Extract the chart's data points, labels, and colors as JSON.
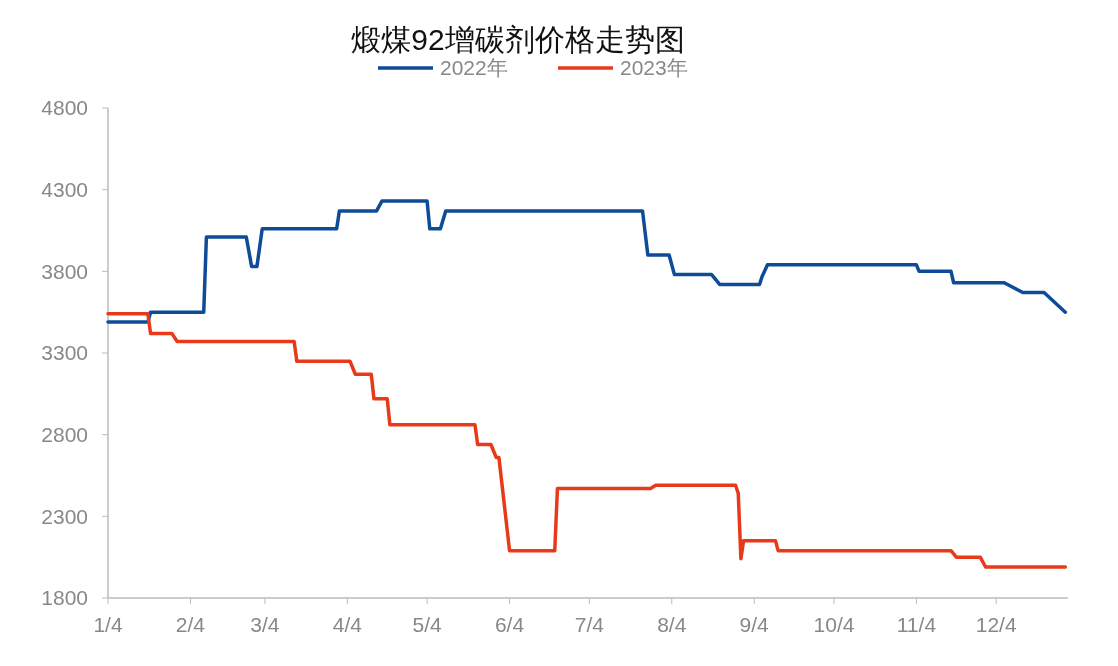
{
  "chart_data": {
    "type": "line",
    "title": "煅煤92增碳剂价格走势图",
    "legend": "top",
    "grid": false,
    "line_style": "solid",
    "xlim": [
      "--01-04",
      "--12-31"
    ],
    "xticks": [
      {
        "value": "--01-04",
        "label": "1/4"
      },
      {
        "value": "--02-04",
        "label": "2/4"
      },
      {
        "value": "--03-04",
        "label": "3/4"
      },
      {
        "value": "--04-04",
        "label": "4/4"
      },
      {
        "value": "--05-04",
        "label": "5/4"
      },
      {
        "value": "--06-04",
        "label": "6/4"
      },
      {
        "value": "--07-04",
        "label": "7/4"
      },
      {
        "value": "--08-04",
        "label": "8/4"
      },
      {
        "value": "--09-04",
        "label": "9/4"
      },
      {
        "value": "--10-04",
        "label": "10/4"
      },
      {
        "value": "--11-04",
        "label": "11/4"
      },
      {
        "value": "--12-04",
        "label": "12/4"
      }
    ],
    "ylim": [
      1800,
      4800
    ],
    "yticks": [
      1800,
      2300,
      2800,
      3300,
      3800,
      4300,
      4800
    ],
    "series": [
      {
        "name": "2022年",
        "color": "#0f4c97",
        "x": [
          "--01-04",
          "--01-19",
          "--01-20",
          "--02-09",
          "--02-10",
          "--02-25",
          "--02-27",
          "--03-01",
          "--03-03",
          "--03-31",
          "--04-01",
          "--04-15",
          "--04-17",
          "--05-04",
          "--05-05",
          "--05-09",
          "--05-11",
          "--07-24",
          "--07-26",
          "--08-03",
          "--08-05",
          "--08-19",
          "--08-22",
          "--09-06",
          "--09-07",
          "--09-09",
          "--11-04",
          "--11-05",
          "--11-17",
          "--11-18",
          "--12-07",
          "--12-14",
          "--12-22",
          "--12-30"
        ],
        "values": [
          3490,
          3490,
          3550,
          3550,
          4010,
          4010,
          3830,
          3830,
          4060,
          4060,
          4170,
          4170,
          4230,
          4230,
          4060,
          4060,
          4170,
          4170,
          3900,
          3900,
          3780,
          3780,
          3720,
          3720,
          3770,
          3840,
          3840,
          3800,
          3800,
          3730,
          3730,
          3670,
          3670,
          3550
        ]
      },
      {
        "name": "2023年",
        "color": "#e8391a",
        "x": [
          "--01-04",
          "--01-19",
          "--01-20",
          "--01-28",
          "--01-30",
          "--03-15",
          "--03-16",
          "--04-05",
          "--04-07",
          "--04-13",
          "--04-14",
          "--04-19",
          "--04-20",
          "--05-22",
          "--05-23",
          "--05-28",
          "--05-30",
          "--05-31",
          "--06-04",
          "--06-21",
          "--06-22",
          "--07-27",
          "--07-29",
          "--08-28",
          "--08-29",
          "--08-30",
          "--08-31",
          "--09-12",
          "--09-13",
          "--11-17",
          "--11-19",
          "--11-28",
          "--11-30",
          "--12-30"
        ],
        "values": [
          3540,
          3540,
          3420,
          3420,
          3370,
          3370,
          3250,
          3250,
          3170,
          3170,
          3020,
          3020,
          2860,
          2860,
          2740,
          2740,
          2660,
          2660,
          2090,
          2090,
          2470,
          2470,
          2490,
          2490,
          2440,
          2040,
          2150,
          2150,
          2090,
          2090,
          2050,
          2050,
          1990,
          1990
        ]
      }
    ]
  }
}
